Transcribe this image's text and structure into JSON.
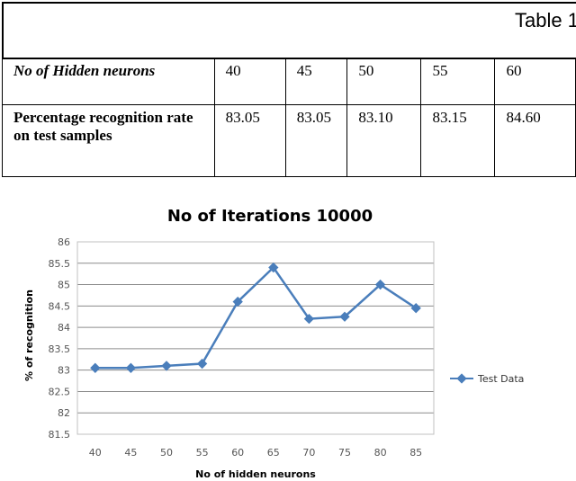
{
  "table": {
    "caption": "Table 1",
    "row1_header": "No of Hidden neurons",
    "row1_values": [
      "40",
      "45",
      "50",
      "55",
      "60"
    ],
    "row2_header": "Percentage recognition rate on test samples",
    "row2_values": [
      "83.05",
      "83.05",
      "83.10",
      "83.15",
      "84.60"
    ]
  },
  "chart_data": {
    "type": "line",
    "title": "No of Iterations 10000",
    "xlabel": "No of hidden neurons",
    "ylabel": "% of recognition",
    "categories": [
      "40",
      "45",
      "50",
      "55",
      "60",
      "65",
      "70",
      "75",
      "80",
      "85"
    ],
    "series": [
      {
        "name": "Test Data",
        "values": [
          83.05,
          83.05,
          83.1,
          83.15,
          84.6,
          85.4,
          84.2,
          84.25,
          85.0,
          84.45
        ]
      }
    ],
    "ylim": [
      81.5,
      86
    ],
    "yticks": [
      "81.5",
      "82",
      "82.5",
      "83",
      "83.5",
      "84",
      "84.5",
      "85",
      "85.5",
      "86"
    ],
    "grid": true,
    "legend": "right",
    "color": "#4a7ebb"
  }
}
